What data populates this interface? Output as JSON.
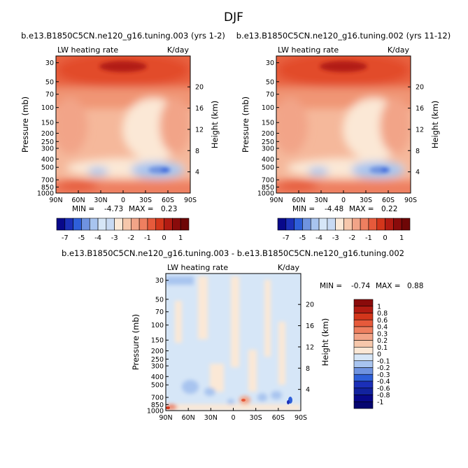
{
  "page_title": "DJF",
  "colors": {
    "neg7": "#08088a",
    "neg5": "#1b2fb8",
    "neg4": "#2e5fd9",
    "neg3": "#6f93e0",
    "neg2": "#a8c4ef",
    "neg1": "#d6e6f7",
    "zero": "#fbe8d6",
    "pos1": "#f6c7ab",
    "pos2": "#f2a488",
    "pos3": "#ee7f60",
    "pos4": "#e65a3b",
    "pos5": "#d3361b",
    "pos6": "#b21b12",
    "pos7": "#8a0b0b"
  },
  "chart_data": [
    {
      "type": "heatmap",
      "title": "b.e13.B1850C5CN.ne120_g16.tuning.003 (yrs 1-2)",
      "subtitle_left": "LW heating rate",
      "subtitle_right": "K/day",
      "xlabel": "",
      "ylabel": "Pressure (mb)",
      "ylabel_right": "Height (km)",
      "x_ticks": [
        "90N",
        "60N",
        "30N",
        "0",
        "30S",
        "60S",
        "90S"
      ],
      "y_ticks": [
        "30",
        "50",
        "70",
        "100",
        "150",
        "200",
        "250",
        "300",
        "400",
        "500",
        "700",
        "850",
        "1000"
      ],
      "y_ticks_right": [
        "20",
        "16",
        "12",
        "8",
        "4"
      ],
      "min_label": "MIN =",
      "min_value": "-4.73",
      "max_label": "MAX =",
      "max_value": "0.23",
      "colorbar_labels": [
        "-7",
        "-5",
        "-4",
        "-3",
        "-2",
        "-1",
        "0",
        "1"
      ]
    },
    {
      "type": "heatmap",
      "title": "b.e13.B1850C5CN.ne120_g16.tuning.002 (yrs 11-12)",
      "subtitle_left": "LW heating rate",
      "subtitle_right": "K/day",
      "xlabel": "",
      "ylabel": "Pressure (mb)",
      "ylabel_right": "Height (km)",
      "x_ticks": [
        "90N",
        "60N",
        "30N",
        "0",
        "30S",
        "60S",
        "90S"
      ],
      "y_ticks": [
        "30",
        "50",
        "70",
        "100",
        "150",
        "200",
        "250",
        "300",
        "400",
        "500",
        "700",
        "850",
        "1000"
      ],
      "y_ticks_right": [
        "20",
        "16",
        "12",
        "8",
        "4"
      ],
      "min_label": "MIN =",
      "min_value": "-4.48",
      "max_label": "MAX =",
      "max_value": "0.22",
      "colorbar_labels": [
        "-7",
        "-5",
        "-4",
        "-3",
        "-2",
        "-1",
        "0",
        "1"
      ]
    },
    {
      "type": "heatmap",
      "title": "b.e13.B1850C5CN.ne120_g16.tuning.003 - b.e13.B1850C5CN.ne120_g16.tuning.002",
      "subtitle_left": "LW heating rate",
      "subtitle_right": "K/day",
      "xlabel": "",
      "ylabel": "Pressure (mb)",
      "ylabel_right": "Height (km)",
      "x_ticks": [
        "90N",
        "60N",
        "30N",
        "0",
        "30S",
        "60S",
        "90S"
      ],
      "y_ticks": [
        "30",
        "50",
        "70",
        "100",
        "150",
        "200",
        "250",
        "300",
        "400",
        "500",
        "700",
        "850",
        "1000"
      ],
      "y_ticks_right": [
        "20",
        "16",
        "12",
        "8",
        "4"
      ],
      "min_label": "MIN =",
      "min_value": "-0.74",
      "max_label": "MAX =",
      "max_value": "0.88",
      "colorbar_labels": [
        "1",
        "0.8",
        "0.6",
        "0.4",
        "0.3",
        "0.2",
        "0.1",
        "0",
        "-0.1",
        "-0.2",
        "-0.3",
        "-0.4",
        "-0.6",
        "-0.8",
        "-1"
      ]
    }
  ]
}
